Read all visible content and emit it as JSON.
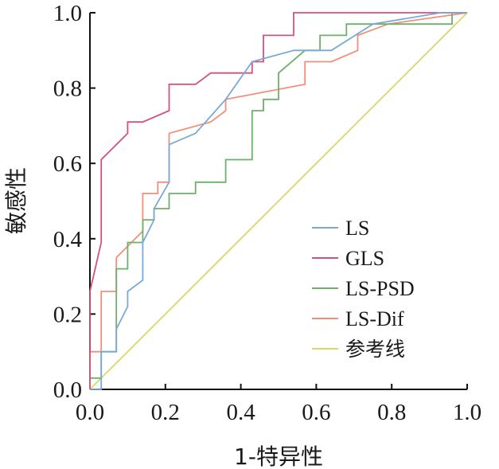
{
  "chart_data": {
    "type": "line",
    "title": "",
    "xlabel": "1-特异性",
    "ylabel": "敏感性",
    "xlim": [
      0,
      1
    ],
    "ylim": [
      0,
      1
    ],
    "xticks": [
      "0.0",
      "0.2",
      "0.4",
      "0.6",
      "0.8",
      "1.0"
    ],
    "yticks": [
      "0.0",
      "0.2",
      "0.4",
      "0.6",
      "0.8",
      "1.0"
    ],
    "grid": false,
    "legend_position": "bottom-right",
    "series": [
      {
        "name": "LS",
        "color": "#7aa9d6",
        "x": [
          0,
          0.03,
          0.03,
          0.07,
          0.07,
          0.1,
          0.1,
          0.14,
          0.14,
          0.17,
          0.17,
          0.21,
          0.21,
          0.28,
          0.36,
          0.43,
          0.54,
          0.64,
          0.75,
          0.93,
          1.0
        ],
        "y": [
          0,
          0,
          0.1,
          0.1,
          0.16,
          0.22,
          0.26,
          0.29,
          0.39,
          0.45,
          0.48,
          0.55,
          0.65,
          0.68,
          0.77,
          0.87,
          0.9,
          0.9,
          0.97,
          1.0,
          1.0
        ]
      },
      {
        "name": "GLS",
        "color": "#d4527a",
        "x": [
          0,
          0,
          0.03,
          0.03,
          0.1,
          0.1,
          0.14,
          0.21,
          0.21,
          0.28,
          0.32,
          0.43,
          0.43,
          0.46,
          0.46,
          0.54,
          0.54,
          1.0
        ],
        "y": [
          0,
          0.26,
          0.39,
          0.61,
          0.68,
          0.71,
          0.71,
          0.74,
          0.81,
          0.81,
          0.84,
          0.84,
          0.87,
          0.87,
          0.94,
          0.94,
          1.0,
          1.0
        ]
      },
      {
        "name": "LS-PSD",
        "color": "#6db06a",
        "x": [
          0,
          0,
          0.03,
          0.03,
          0.07,
          0.07,
          0.1,
          0.1,
          0.14,
          0.14,
          0.17,
          0.17,
          0.21,
          0.21,
          0.28,
          0.28,
          0.36,
          0.36,
          0.43,
          0.43,
          0.46,
          0.46,
          0.5,
          0.5,
          0.57,
          0.61,
          0.61,
          0.68,
          0.68,
          0.96,
          0.96,
          1.0
        ],
        "y": [
          0,
          0.03,
          0.03,
          0.1,
          0.1,
          0.32,
          0.32,
          0.39,
          0.39,
          0.45,
          0.45,
          0.48,
          0.48,
          0.52,
          0.52,
          0.55,
          0.55,
          0.61,
          0.61,
          0.74,
          0.74,
          0.77,
          0.77,
          0.84,
          0.9,
          0.9,
          0.94,
          0.94,
          0.97,
          0.97,
          1.0,
          1.0
        ]
      },
      {
        "name": "LS-Dif",
        "color": "#f0907a",
        "x": [
          0,
          0,
          0.03,
          0.03,
          0.07,
          0.07,
          0.14,
          0.14,
          0.18,
          0.18,
          0.21,
          0.21,
          0.32,
          0.36,
          0.36,
          0.57,
          0.57,
          0.64,
          0.71,
          0.71,
          0.79,
          1.0
        ],
        "y": [
          0,
          0.1,
          0.1,
          0.26,
          0.26,
          0.35,
          0.42,
          0.52,
          0.52,
          0.55,
          0.55,
          0.68,
          0.71,
          0.74,
          0.77,
          0.81,
          0.87,
          0.87,
          0.9,
          0.94,
          0.97,
          1.0
        ]
      },
      {
        "name": "参考线",
        "color": "#d9d96a",
        "x": [
          0,
          1
        ],
        "y": [
          0,
          1
        ]
      }
    ]
  }
}
